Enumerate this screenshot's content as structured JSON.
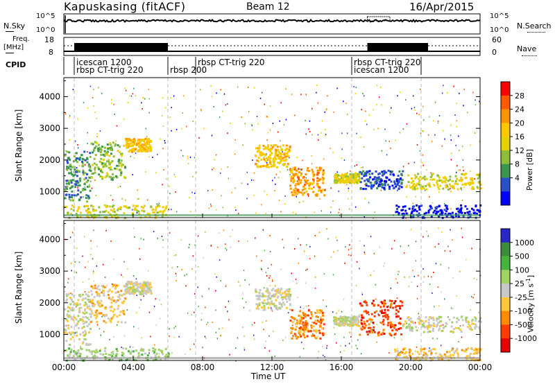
{
  "header": {
    "station": "Kapuskasing (fitACF)",
    "beam": "Beam 12",
    "date": "16/Apr/2015"
  },
  "noise_panel": {
    "left_label": "N.Sky",
    "left_ticks": [
      "10^5",
      "10^0"
    ],
    "right_label": "N.Search",
    "right_ticks": [
      "10^5",
      "10^0"
    ]
  },
  "freq_panel": {
    "left_label_1": "Freq.",
    "left_label_2": "[MHz]",
    "left_ticks": [
      "18",
      "8"
    ],
    "right_label": "Nave",
    "right_ticks": [
      "60",
      "0"
    ]
  },
  "cpid": {
    "label": "CPID",
    "entries": [
      {
        "text": "icescan 1200",
        "row": 1,
        "start_h": 0.6
      },
      {
        "text": "rbsp CT-trig 220",
        "row": 2,
        "start_h": 0.6
      },
      {
        "text": "rbsp 200",
        "row": 2,
        "start_h": 6.0
      },
      {
        "text": "rbsp CT-trig 220",
        "row": 1,
        "start_h": 7.6
      },
      {
        "text": "rbsp CT-trig 220",
        "row": 1,
        "start_h": 16.6
      },
      {
        "text": "icescan 1200",
        "row": 2,
        "start_h": 16.6
      }
    ]
  },
  "power_colorbar": {
    "label": "Power [dB]",
    "ticks": [
      "28",
      "24",
      "20",
      "16",
      "12",
      "8",
      "4"
    ],
    "colors": [
      "#ff0000",
      "#ff5a00",
      "#ff9600",
      "#ffc800",
      "#e6d200",
      "#8cbe3c",
      "#3c9650",
      "#2850c8",
      "#0000ff"
    ]
  },
  "velocity_colorbar": {
    "label": "Velocity [m s-1]",
    "ticks": [
      "1000",
      "500",
      "100",
      "25",
      "-25",
      "-100",
      "-500",
      "-1000"
    ],
    "colors": [
      "#2828c8",
      "#3c8c3c",
      "#46b43c",
      "#a0d264",
      "#c8c8c8",
      "#ffc83c",
      "#ff8c00",
      "#ff3c00",
      "#e60000"
    ]
  },
  "axes": {
    "ylabel": "Slant Range [km]",
    "yticks": [
      1000,
      2000,
      3000,
      4000
    ],
    "xlabel": "Time UT",
    "xticks": [
      "00:00",
      "04:00",
      "08:00",
      "12:00",
      "16:00",
      "20:00",
      "00:00"
    ]
  },
  "chart_data": [
    {
      "type": "heatmap",
      "title": "",
      "xlabel": "",
      "ylabel": "Slant Range [km]",
      "xlim_hours": [
        0,
        24
      ],
      "ylim_km": [
        180,
        4600
      ],
      "colorbar_label": "Power [dB]",
      "segments": [
        {
          "t0": 0.0,
          "t1": 1.5,
          "r0": 700,
          "r1": 2300,
          "level": 6
        },
        {
          "t0": 1.5,
          "t1": 3.5,
          "r0": 1400,
          "r1": 2600,
          "level": 5
        },
        {
          "t0": 3.5,
          "t1": 5.0,
          "r0": 2300,
          "r1": 2700,
          "level": 3
        },
        {
          "t0": 0.0,
          "t1": 6.0,
          "r0": 200,
          "r1": 600,
          "level": 4
        },
        {
          "t0": 11.0,
          "t1": 13.0,
          "r0": 1800,
          "r1": 2500,
          "level": 3
        },
        {
          "t0": 13.0,
          "t1": 15.0,
          "r0": 900,
          "r1": 1800,
          "level": 2
        },
        {
          "t0": 15.5,
          "t1": 17.0,
          "r0": 1300,
          "r1": 1600,
          "level": 4
        },
        {
          "t0": 17.0,
          "t1": 19.5,
          "r0": 1100,
          "r1": 1700,
          "level": 7
        },
        {
          "t0": 19.5,
          "t1": 24.0,
          "r0": 1100,
          "r1": 1600,
          "level": 4
        },
        {
          "t0": 19.0,
          "t1": 24.0,
          "r0": 200,
          "r1": 600,
          "level": 8
        }
      ]
    },
    {
      "type": "heatmap",
      "title": "",
      "xlabel": "Time UT",
      "ylabel": "Slant Range [km]",
      "xlim_hours": [
        0,
        24
      ],
      "ylim_km": [
        180,
        4600
      ],
      "colorbar_label": "Velocity [m s-1]",
      "segments": [
        {
          "t0": 0.0,
          "t1": 1.5,
          "r0": 700,
          "r1": 2300,
          "level": 4
        },
        {
          "t0": 1.5,
          "t1": 3.5,
          "r0": 1400,
          "r1": 2600,
          "level": 5
        },
        {
          "t0": 3.5,
          "t1": 5.0,
          "r0": 2300,
          "r1": 2700,
          "level": 4
        },
        {
          "t0": 0.0,
          "t1": 6.0,
          "r0": 200,
          "r1": 600,
          "level": 3
        },
        {
          "t0": 11.0,
          "t1": 13.0,
          "r0": 1800,
          "r1": 2500,
          "level": 4
        },
        {
          "t0": 13.0,
          "t1": 15.0,
          "r0": 900,
          "r1": 1800,
          "level": 6
        },
        {
          "t0": 15.5,
          "t1": 17.0,
          "r0": 1300,
          "r1": 1600,
          "level": 4
        },
        {
          "t0": 17.0,
          "t1": 19.5,
          "r0": 1000,
          "r1": 2100,
          "level": 7
        },
        {
          "t0": 19.5,
          "t1": 24.0,
          "r0": 1100,
          "r1": 1600,
          "level": 4
        },
        {
          "t0": 19.0,
          "t1": 24.0,
          "r0": 200,
          "r1": 600,
          "level": 5
        }
      ]
    }
  ]
}
